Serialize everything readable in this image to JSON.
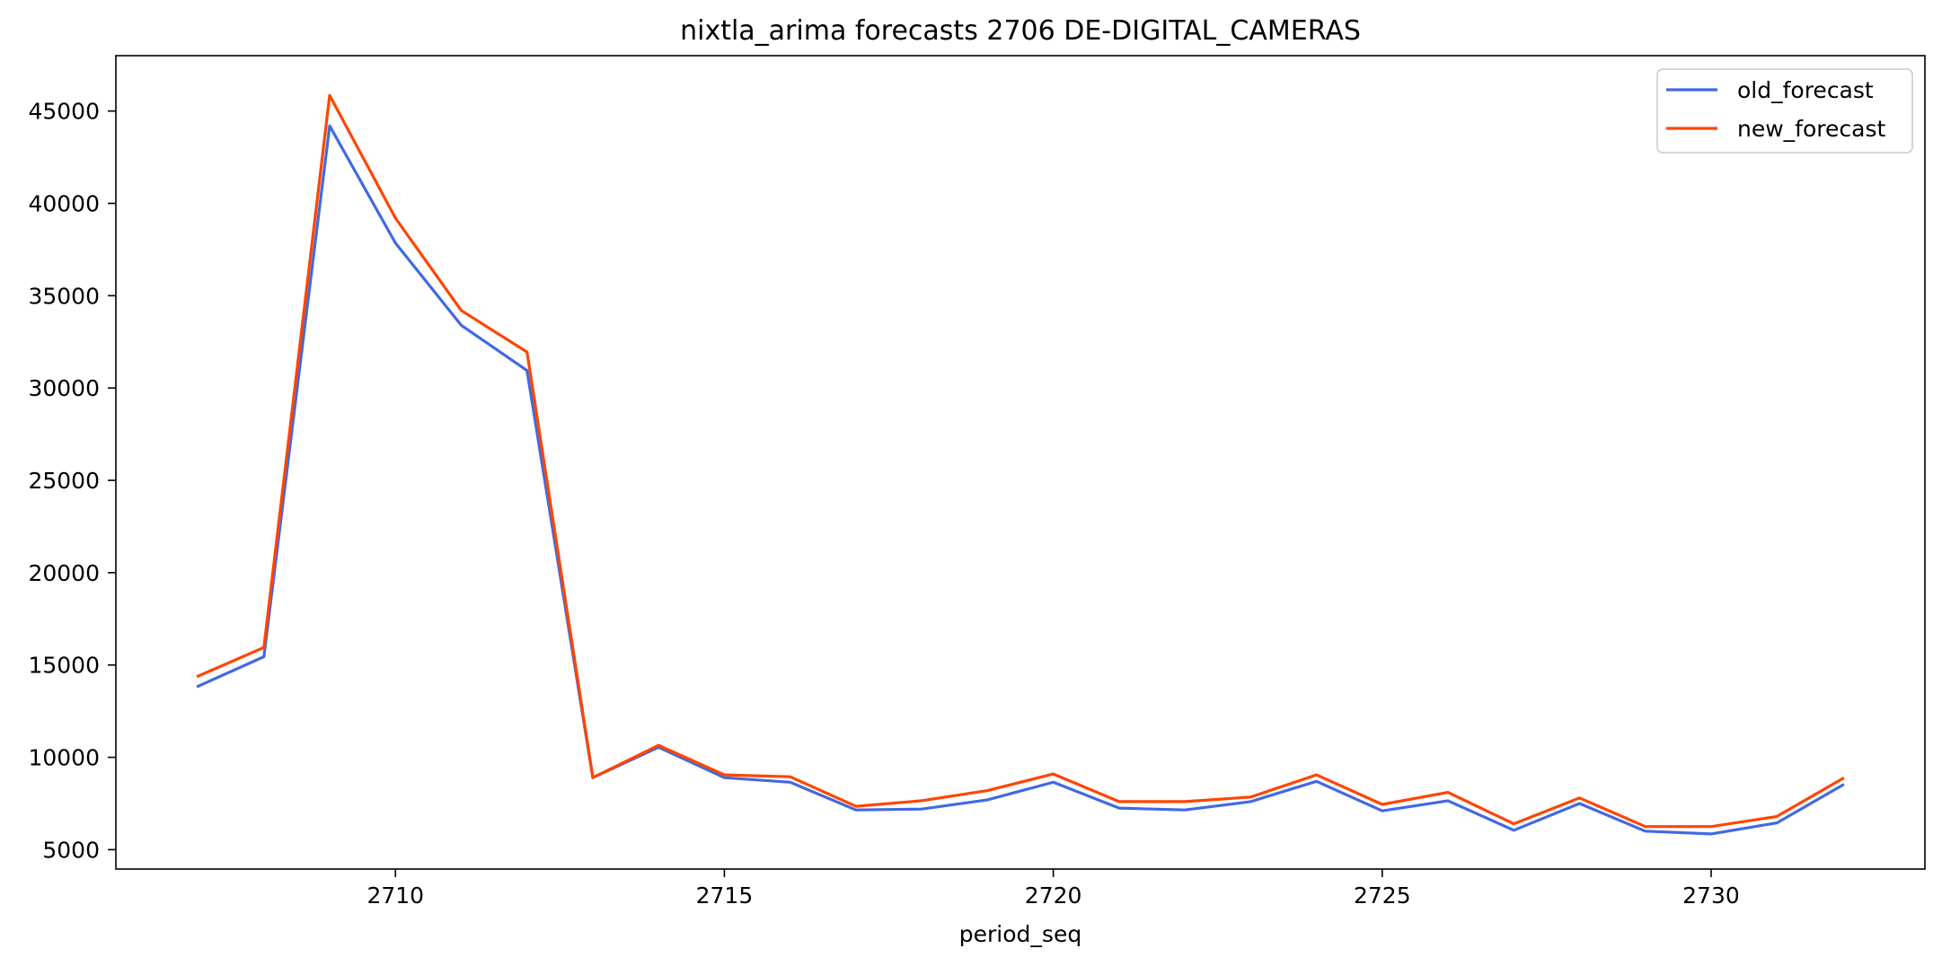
{
  "chart_data": {
    "type": "line",
    "title": "nixtla_arima forecasts 2706 DE-DIGITAL_CAMERAS",
    "xlabel": "period_seq",
    "ylabel": "",
    "x": [
      2707,
      2708,
      2709,
      2710,
      2711,
      2712,
      2713,
      2714,
      2715,
      2716,
      2717,
      2718,
      2719,
      2720,
      2721,
      2722,
      2723,
      2724,
      2725,
      2726,
      2727,
      2728,
      2729,
      2730,
      2731,
      2732
    ],
    "xlim": [
      2705.75,
      2733.25
    ],
    "ylim": [
      3950,
      48000
    ],
    "xticks": [
      2710,
      2715,
      2720,
      2725,
      2730
    ],
    "yticks": [
      5000,
      10000,
      15000,
      20000,
      25000,
      30000,
      35000,
      40000,
      45000
    ],
    "grid": false,
    "legend_position": "top-right",
    "series": [
      {
        "name": "old_forecast",
        "color": "#4169e1",
        "values": [
          13850,
          15450,
          44200,
          37850,
          33400,
          30950,
          8900,
          10550,
          8900,
          8650,
          7150,
          7200,
          7700,
          8650,
          7250,
          7150,
          7600,
          8700,
          7100,
          7650,
          6050,
          7500,
          6000,
          5850,
          6450,
          8500
        ]
      },
      {
        "name": "new_forecast",
        "color": "#ff4500",
        "values": [
          14400,
          15950,
          45850,
          39200,
          34200,
          31950,
          8900,
          10650,
          9050,
          8950,
          7350,
          7650,
          8200,
          9100,
          7600,
          7600,
          7850,
          9050,
          7450,
          8100,
          6400,
          7800,
          6250,
          6250,
          6800,
          8850
        ]
      }
    ]
  }
}
